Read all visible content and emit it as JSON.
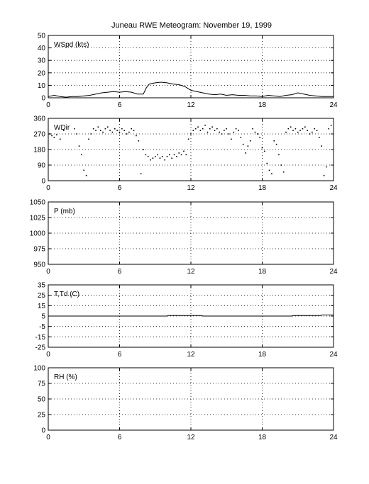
{
  "chart_data": {
    "title": "Juneau RWE Meteogram:  November 19, 1999",
    "type": "line",
    "panels": [
      {
        "id": "wspd",
        "label": "WSpd (kts)",
        "type": "line",
        "xlim": [
          0,
          24
        ],
        "xticks": [
          0,
          6,
          12,
          18,
          24
        ],
        "ylim": [
          0,
          50
        ],
        "yticks": [
          0,
          10,
          20,
          30,
          40,
          50
        ],
        "grid": true,
        "series": [
          {
            "x": [
              0,
              0.5,
              1,
              1.5,
              2,
              2.5,
              3,
              3.5,
              4,
              4.5,
              5,
              5.5,
              6,
              6.5,
              7,
              7.5,
              8,
              8.25,
              8.5,
              9,
              9.5,
              10,
              10.5,
              11,
              11.5,
              12,
              12.5,
              13,
              13.5,
              14,
              14.5,
              15,
              15.5,
              16,
              16.5,
              17,
              17.5,
              18,
              18.5,
              19,
              19.5,
              20,
              20.5,
              21,
              21.5,
              22,
              22.5,
              23,
              23.5,
              24
            ],
            "y": [
              1,
              2,
              1,
              0.5,
              1,
              1,
              1.5,
              2,
              3,
              4,
              4.5,
              5,
              4.5,
              5,
              4.5,
              3,
              3,
              8,
              11,
              12,
              12.5,
              12,
              11,
              10.5,
              9,
              6,
              5,
              4,
              3,
              2.5,
              3,
              2,
              2.5,
              2,
              2,
              1.5,
              1.5,
              1,
              2,
              1.5,
              1,
              2,
              2.5,
              4,
              3,
              2,
              1.5,
              1,
              1,
              1
            ]
          }
        ]
      },
      {
        "id": "wdir",
        "label": "WDir",
        "type": "scatter",
        "xlim": [
          0,
          24
        ],
        "xticks": [
          0,
          6,
          12,
          18,
          24
        ],
        "ylim": [
          0,
          360
        ],
        "yticks": [
          0,
          90,
          180,
          270,
          360
        ],
        "grid": true,
        "series": [
          {
            "x": [
              0.1,
              0.3,
              0.5,
              0.7,
              1.0,
              1.3,
              2.2,
              2.4,
              2.6,
              2.8,
              3.0,
              3.2,
              3.4,
              3.6,
              3.8,
              4.0,
              4.2,
              4.4,
              4.6,
              4.8,
              5.0,
              5.2,
              5.4,
              5.6,
              5.8,
              6.0,
              6.2,
              6.4,
              6.6,
              6.8,
              7.0,
              7.2,
              7.4,
              7.6,
              7.8,
              8.0,
              8.2,
              8.4,
              8.6,
              8.8,
              9.0,
              9.2,
              9.4,
              9.6,
              9.8,
              10.0,
              10.2,
              10.4,
              10.6,
              10.8,
              11.0,
              11.2,
              11.4,
              11.6,
              11.8,
              12.0,
              12.2,
              12.4,
              12.6,
              12.8,
              13.0,
              13.2,
              13.4,
              13.6,
              13.8,
              14.0,
              14.2,
              14.4,
              14.6,
              14.8,
              15.0,
              15.2,
              15.4,
              15.6,
              15.8,
              16.0,
              16.2,
              16.4,
              16.6,
              16.8,
              17.0,
              17.2,
              17.4,
              17.6,
              17.8,
              18.0,
              18.2,
              18.4,
              18.6,
              18.8,
              19.0,
              19.2,
              19.4,
              19.6,
              19.8,
              20.0,
              20.2,
              20.4,
              20.6,
              20.8,
              21.0,
              21.2,
              21.4,
              21.6,
              21.8,
              22.0,
              22.2,
              22.4,
              22.6,
              22.8,
              23.0,
              23.2,
              23.4,
              23.6,
              23.8
            ],
            "y": [
              270,
              260,
              250,
              265,
              240,
              290,
              300,
              270,
              200,
              150,
              60,
              30,
              240,
              270,
              300,
              290,
              310,
              290,
              280,
              300,
              310,
              290,
              280,
              300,
              290,
              280,
              300,
              290,
              270,
              280,
              300,
              290,
              260,
              230,
              40,
              180,
              150,
              140,
              120,
              130,
              140,
              150,
              130,
              140,
              120,
              140,
              150,
              130,
              150,
              140,
              160,
              150,
              170,
              150,
              240,
              270,
              290,
              300,
              310,
              290,
              300,
              320,
              280,
              300,
              310,
              290,
              300,
              280,
              270,
              290,
              300,
              270,
              240,
              280,
              300,
              290,
              250,
              210,
              160,
              200,
              230,
              300,
              280,
              270,
              250,
              190,
              170,
              100,
              60,
              40,
              230,
              210,
              150,
              90,
              50,
              280,
              300,
              310,
              290,
              300,
              280,
              290,
              300,
              310,
              290,
              270,
              280,
              300,
              290,
              250,
              200,
              30,
              80,
              300,
              320
            ]
          }
        ]
      },
      {
        "id": "pres",
        "label": "P (mb)",
        "type": "line",
        "xlim": [
          0,
          24
        ],
        "xticks": [
          0,
          6,
          12,
          18,
          24
        ],
        "ylim": [
          950,
          1050
        ],
        "yticks": [
          950,
          975,
          1000,
          1025,
          1050
        ],
        "grid": true,
        "series": []
      },
      {
        "id": "ttd",
        "label": "T,Td (C)",
        "type": "line",
        "xlim": [
          0,
          24
        ],
        "xticks": [
          0,
          6,
          12,
          18,
          24
        ],
        "ylim": [
          -25,
          35
        ],
        "yticks": [
          -25,
          -15,
          -5,
          5,
          15,
          25,
          35
        ],
        "grid": true,
        "series": [
          {
            "x": [
              0,
              10,
              10.1,
              12.9,
              13,
              20.5,
              20.6,
              22.9,
              23,
              24
            ],
            "y": [
              5,
              5,
              5.5,
              5.5,
              5,
              5,
              5.5,
              5.5,
              6,
              6
            ]
          }
        ]
      },
      {
        "id": "rh",
        "label": "RH (%)",
        "type": "line",
        "xlim": [
          0,
          24
        ],
        "xticks": [
          0,
          6,
          12,
          18,
          24
        ],
        "ylim": [
          0,
          100
        ],
        "yticks": [
          0,
          25,
          50,
          75,
          100
        ],
        "grid": true,
        "series": []
      }
    ]
  }
}
